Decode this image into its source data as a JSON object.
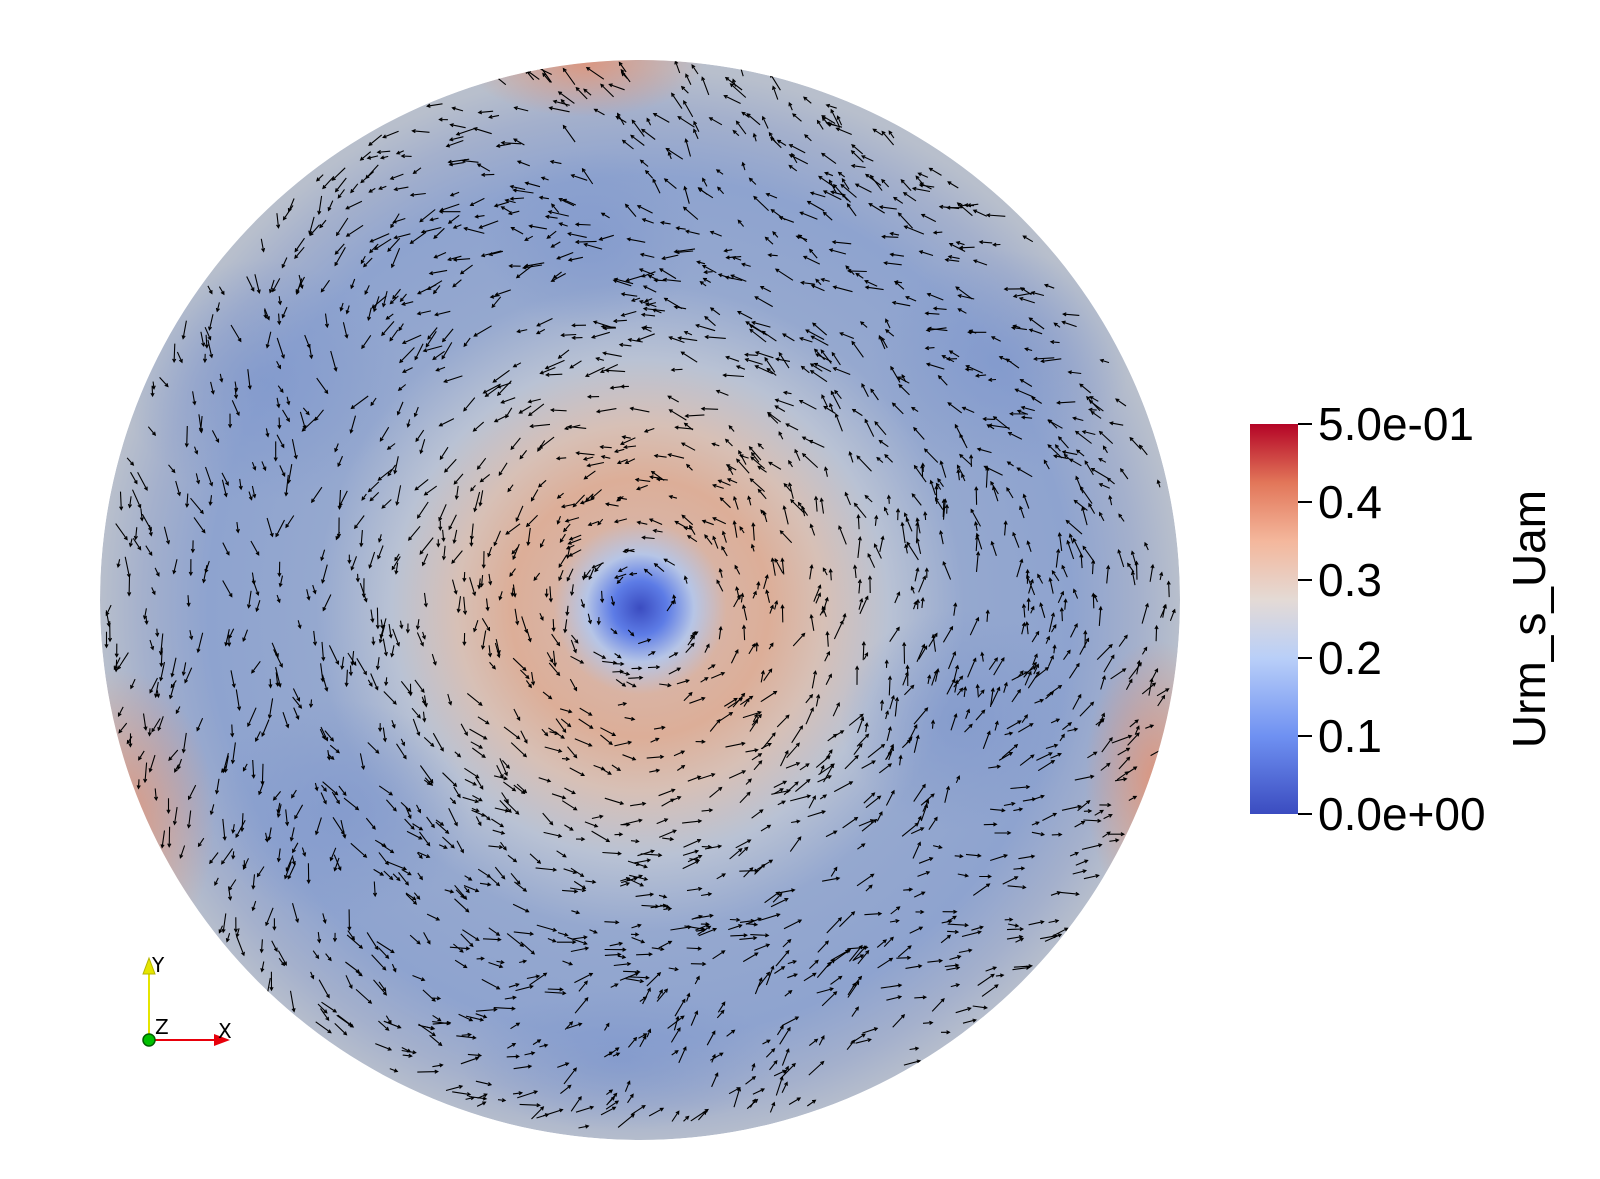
{
  "scene": {
    "field_name": "Urm_s_Uam",
    "palette": {
      "low": "#3b4cc0",
      "lowmid": "#7b9ff9",
      "mid": "#dddddd",
      "highmid": "#f08b6e",
      "high": "#b40426",
      "outer_blue": "#8ea3cf"
    },
    "glyph_color": "#000000"
  },
  "color_legend": {
    "title": "Urm_s_Uam",
    "range": [
      0.0,
      0.5
    ],
    "ticks": [
      {
        "value": 0.5,
        "label": "5.0e-01"
      },
      {
        "value": 0.4,
        "label": "0.4"
      },
      {
        "value": 0.3,
        "label": "0.3"
      },
      {
        "value": 0.2,
        "label": "0.2"
      },
      {
        "value": 0.1,
        "label": "0.1"
      },
      {
        "value": 0.0,
        "label": "0.0e+00"
      }
    ]
  },
  "orientation_axes": {
    "x_label": "X",
    "y_label": "Y",
    "z_label": "Z",
    "x_color": "#e8000b",
    "y_color": "#e5e500",
    "z_color": "#00c000"
  }
}
